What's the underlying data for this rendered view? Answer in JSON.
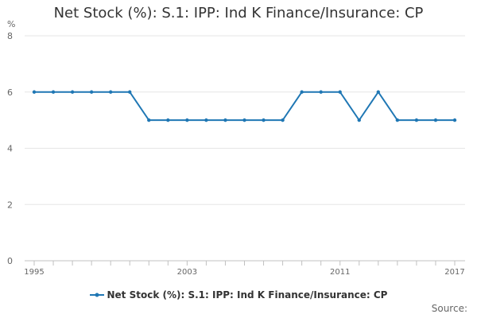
{
  "chart_data": {
    "type": "line",
    "title": "Net Stock (%): S.1: IPP: Ind K Finance/Insurance: CP",
    "ylabel": "%",
    "xlabel": "",
    "x": [
      1995,
      1996,
      1997,
      1998,
      1999,
      2000,
      2001,
      2002,
      2003,
      2004,
      2005,
      2006,
      2007,
      2008,
      2009,
      2010,
      2011,
      2012,
      2013,
      2014,
      2015,
      2016,
      2017
    ],
    "series": [
      {
        "name": "Net Stock (%): S.1: IPP: Ind K Finance/Insurance: CP",
        "color": "#1f77b4",
        "values": [
          6,
          6,
          6,
          6,
          6,
          6,
          5,
          5,
          5,
          5,
          5,
          5,
          5,
          5,
          6,
          6,
          6,
          5,
          6,
          5,
          5,
          5,
          5
        ]
      }
    ],
    "ylim": [
      0,
      8
    ],
    "yticks": [
      "0",
      "2",
      "4",
      "6",
      "8"
    ],
    "xtick_labels": [
      "1995",
      "2003",
      "2011",
      "2017"
    ],
    "xlim": [
      1995,
      2017
    ],
    "grid": "horizontal",
    "legend_position": "bottom"
  },
  "footer": {
    "source_label": "Source:"
  }
}
